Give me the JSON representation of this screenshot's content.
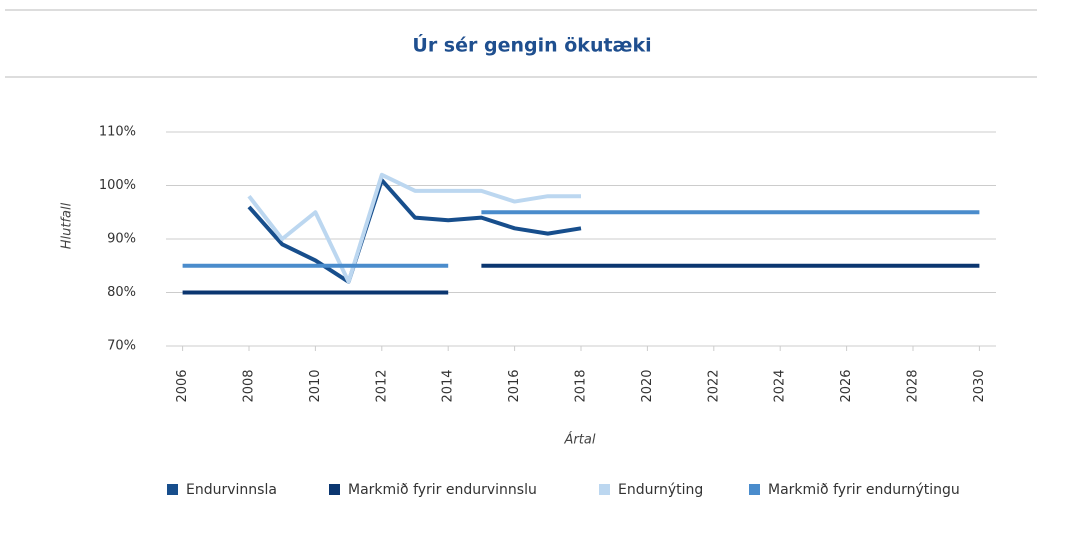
{
  "chart_data": {
    "type": "line",
    "title": "Úr sér gengin ökutæki",
    "xlabel": "Ártal",
    "ylabel": "Hlutfall",
    "xlim": [
      2005.5,
      2030.5
    ],
    "xticks": [
      2006,
      2008,
      2010,
      2012,
      2014,
      2016,
      2018,
      2020,
      2022,
      2024,
      2026,
      2028,
      2030
    ],
    "ylim": [
      70,
      110
    ],
    "yticks": [
      {
        "value": 70,
        "label": "70%"
      },
      {
        "value": 80,
        "label": "80%"
      },
      {
        "value": 90,
        "label": "90%"
      },
      {
        "value": 100,
        "label": "100%"
      },
      {
        "value": 110,
        "label": "110%"
      }
    ],
    "grid": true,
    "legend": "bottom",
    "series": [
      {
        "name": "Endurvinnsla",
        "color": "#174e8c",
        "x": [
          2008,
          2009,
          2010,
          2011,
          2012,
          2013,
          2014,
          2015,
          2016,
          2017,
          2018
        ],
        "values": [
          96,
          89,
          86,
          82,
          101,
          94,
          93.5,
          94,
          92,
          91,
          92
        ]
      },
      {
        "name": "Markmið fyrir endurvinnslu",
        "color": "#0b3670",
        "x": [
          2006,
          2014,
          null,
          2015,
          2030
        ],
        "values": [
          80,
          80,
          null,
          85,
          85
        ]
      },
      {
        "name": "Endurnýting",
        "color": "#bcd7f0",
        "x": [
          2008,
          2009,
          2010,
          2011,
          2012,
          2013,
          2014,
          2015,
          2016,
          2017,
          2018
        ],
        "values": [
          98,
          90,
          95,
          82,
          102,
          99,
          99,
          99,
          97,
          98,
          98
        ]
      },
      {
        "name": "Markmið fyrir endurnýtingu",
        "color": "#4a8ccc",
        "x": [
          2006,
          2014,
          null,
          2015,
          2030
        ],
        "values": [
          85,
          85,
          null,
          95,
          95
        ]
      }
    ]
  }
}
